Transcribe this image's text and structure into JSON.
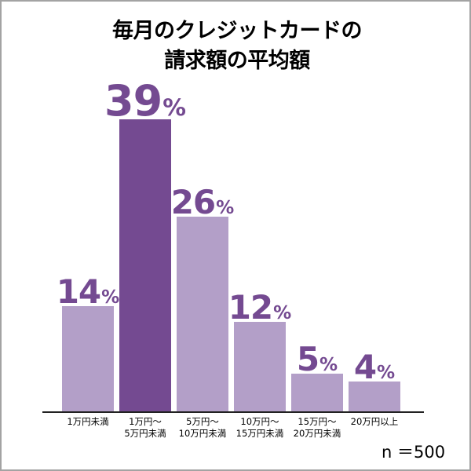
{
  "title": {
    "line1": "毎月のクレジットカードの",
    "line2": "請求額の平均額"
  },
  "sample_size": "n ＝500",
  "colors": {
    "highlight": "#744a91",
    "normal": "#b39fc8",
    "label": "#744a91",
    "axis": "#222222",
    "frame": "#a3a3a3"
  },
  "bars": [
    {
      "category": "1万円未満",
      "label_line1": "1万円未満",
      "label_line2": "",
      "value": 14,
      "value_text": "14",
      "unit": "%",
      "highlight": false
    },
    {
      "category": "1万円〜5万円未満",
      "label_line1": "1万円〜",
      "label_line2": "5万円未満",
      "value": 39,
      "value_text": "39",
      "unit": "%",
      "highlight": true
    },
    {
      "category": "5万円〜10万円未満",
      "label_line1": "5万円〜",
      "label_line2": "10万円未満",
      "value": 26,
      "value_text": "26",
      "unit": "%",
      "highlight": false
    },
    {
      "category": "10万円〜15万円未満",
      "label_line1": "10万円〜",
      "label_line2": "15万円未満",
      "value": 12,
      "value_text": "12",
      "unit": "%",
      "highlight": false
    },
    {
      "category": "15万円〜20万円未満",
      "label_line1": "15万円〜",
      "label_line2": "20万円未満",
      "value": 5,
      "value_text": "5",
      "unit": "%",
      "highlight": false
    },
    {
      "category": "20万円以上",
      "label_line1": "20万円以上",
      "label_line2": "",
      "value": 4,
      "value_text": "4",
      "unit": "%",
      "highlight": false
    }
  ],
  "chart_data": {
    "type": "bar",
    "title": "毎月のクレジットカードの請求額の平均額",
    "categories": [
      "1万円未満",
      "1万円〜5万円未満",
      "5万円〜10万円未満",
      "10万円〜15万円未満",
      "15万円〜20万円未満",
      "20万円以上"
    ],
    "values": [
      14,
      39,
      26,
      12,
      5,
      4
    ],
    "unit": "%",
    "xlabel": "",
    "ylabel": "",
    "ylim": [
      0,
      39
    ],
    "grid": false,
    "legend": null,
    "data_labels": true,
    "highlighted_category": "1万円〜5万円未満",
    "annotations": [
      "n ＝500"
    ]
  }
}
